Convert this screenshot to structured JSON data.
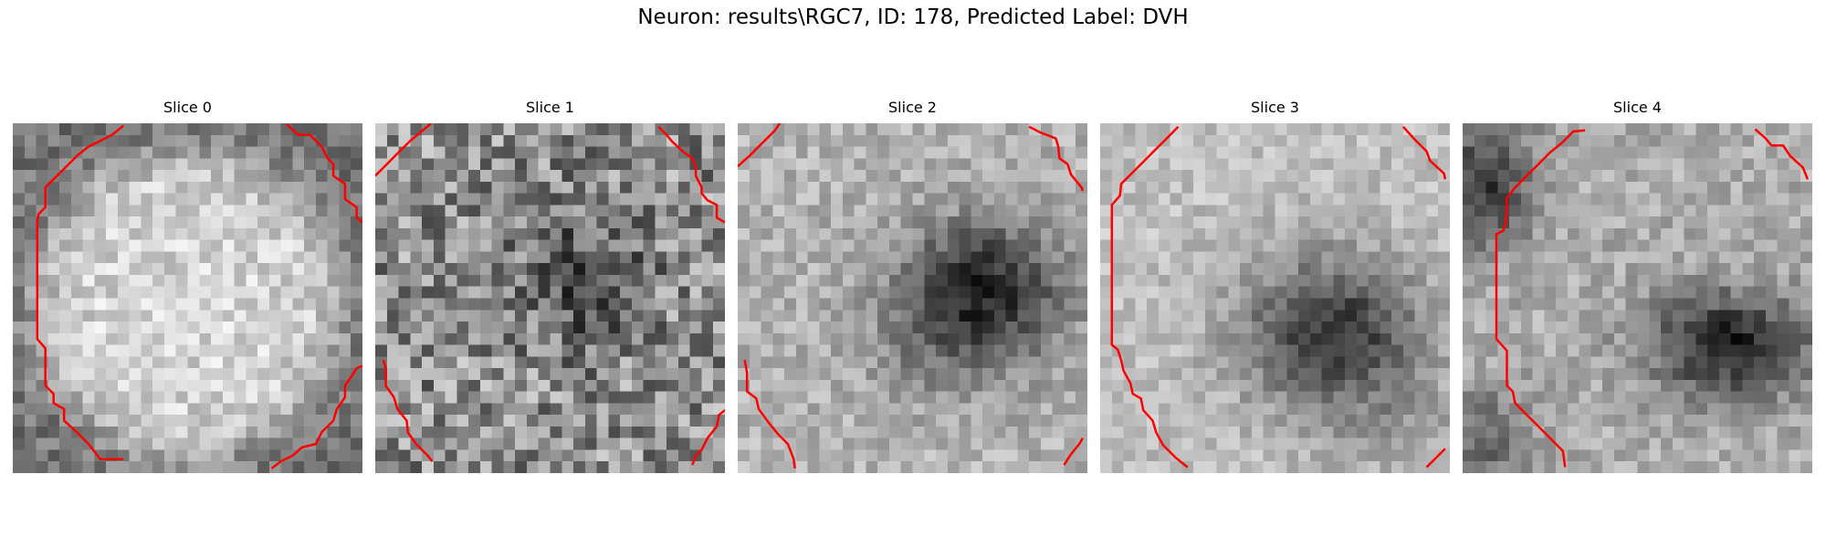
{
  "figure": {
    "title": "Neuron: results\\RGC7, ID: 178, Predicted Label: DVH"
  },
  "slices": [
    {
      "title": "Slice 0"
    },
    {
      "title": "Slice 1"
    },
    {
      "title": "Slice 2"
    },
    {
      "title": "Slice 3"
    },
    {
      "title": "Slice 4"
    }
  ],
  "colors": {
    "contour": "#ff0000",
    "background": "#ffffff",
    "colormap": "gray"
  }
}
